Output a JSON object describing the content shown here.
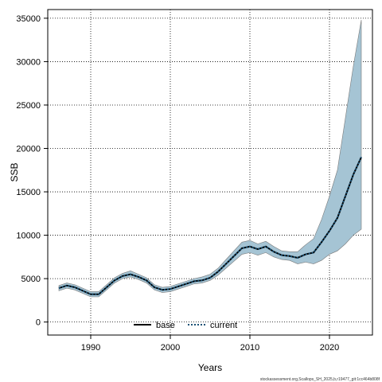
{
  "chart_data": {
    "type": "area",
    "xlabel": "Years",
    "ylabel": "SSB",
    "xlim": [
      1984.6,
      2025.4
    ],
    "ylim": [
      -1500,
      36000
    ],
    "xticks": [
      1990,
      2000,
      2010,
      2020
    ],
    "yticks": [
      0,
      5000,
      10000,
      15000,
      20000,
      25000,
      30000,
      35000
    ],
    "grid": true,
    "legend_position": "bottom-center",
    "legend": [
      {
        "label": "base",
        "style": "solid",
        "color": "#000000"
      },
      {
        "label": "current",
        "style": "dotted",
        "color": "#1a5276"
      }
    ],
    "band_color": "#a5c4d4",
    "x": [
      1986,
      1987,
      1988,
      1989,
      1990,
      1991,
      1992,
      1993,
      1994,
      1995,
      1996,
      1997,
      1998,
      1999,
      2000,
      2001,
      2002,
      2003,
      2004,
      2005,
      2006,
      2007,
      2008,
      2009,
      2010,
      2011,
      2012,
      2013,
      2014,
      2015,
      2016,
      2017,
      2018,
      2019,
      2020,
      2021,
      2022,
      2023,
      2024
    ],
    "series": [
      {
        "name": "base",
        "values": [
          3900,
          4200,
          4000,
          3600,
          3200,
          3200,
          4000,
          4800,
          5300,
          5500,
          5200,
          4800,
          4000,
          3700,
          3800,
          4100,
          4400,
          4700,
          4800,
          5100,
          5800,
          6700,
          7600,
          8500,
          8700,
          8400,
          8700,
          8100,
          7700,
          7600,
          7400,
          7800,
          8000,
          9200,
          10500,
          12000,
          14500,
          17000,
          19000
        ]
      },
      {
        "name": "current",
        "values": [
          3900,
          4200,
          4000,
          3600,
          3200,
          3200,
          4000,
          4800,
          5300,
          5500,
          5200,
          4800,
          4000,
          3700,
          3800,
          4100,
          4400,
          4700,
          4800,
          5100,
          5800,
          6700,
          7600,
          8500,
          8700,
          8400,
          8700,
          8100,
          7700,
          7600,
          7400,
          7800,
          8000,
          9200,
          10500,
          12000,
          14500,
          17000,
          19000
        ]
      }
    ],
    "band_upper": [
      4200,
      4500,
      4300,
      3900,
      3500,
      3500,
      4300,
      5100,
      5600,
      5900,
      5500,
      5100,
      4300,
      4000,
      4100,
      4400,
      4700,
      5000,
      5200,
      5500,
      6200,
      7200,
      8200,
      9200,
      9400,
      9000,
      9300,
      8700,
      8200,
      8100,
      8100,
      8900,
      9600,
      11800,
      14500,
      17500,
      23500,
      29500,
      34800
    ],
    "band_lower": [
      3600,
      3900,
      3700,
      3300,
      2900,
      2900,
      3700,
      4500,
      5000,
      5200,
      4900,
      4500,
      3700,
      3400,
      3500,
      3800,
      4100,
      4400,
      4500,
      4800,
      5400,
      6200,
      7000,
      7800,
      8000,
      7700,
      8000,
      7500,
      7200,
      7100,
      6700,
      6900,
      6700,
      7100,
      7800,
      8200,
      9000,
      10000,
      10700
    ]
  },
  "footer_text": "stockassessment.org,Scallops_SH_2025,b,r19477_git:1cc464b808f"
}
